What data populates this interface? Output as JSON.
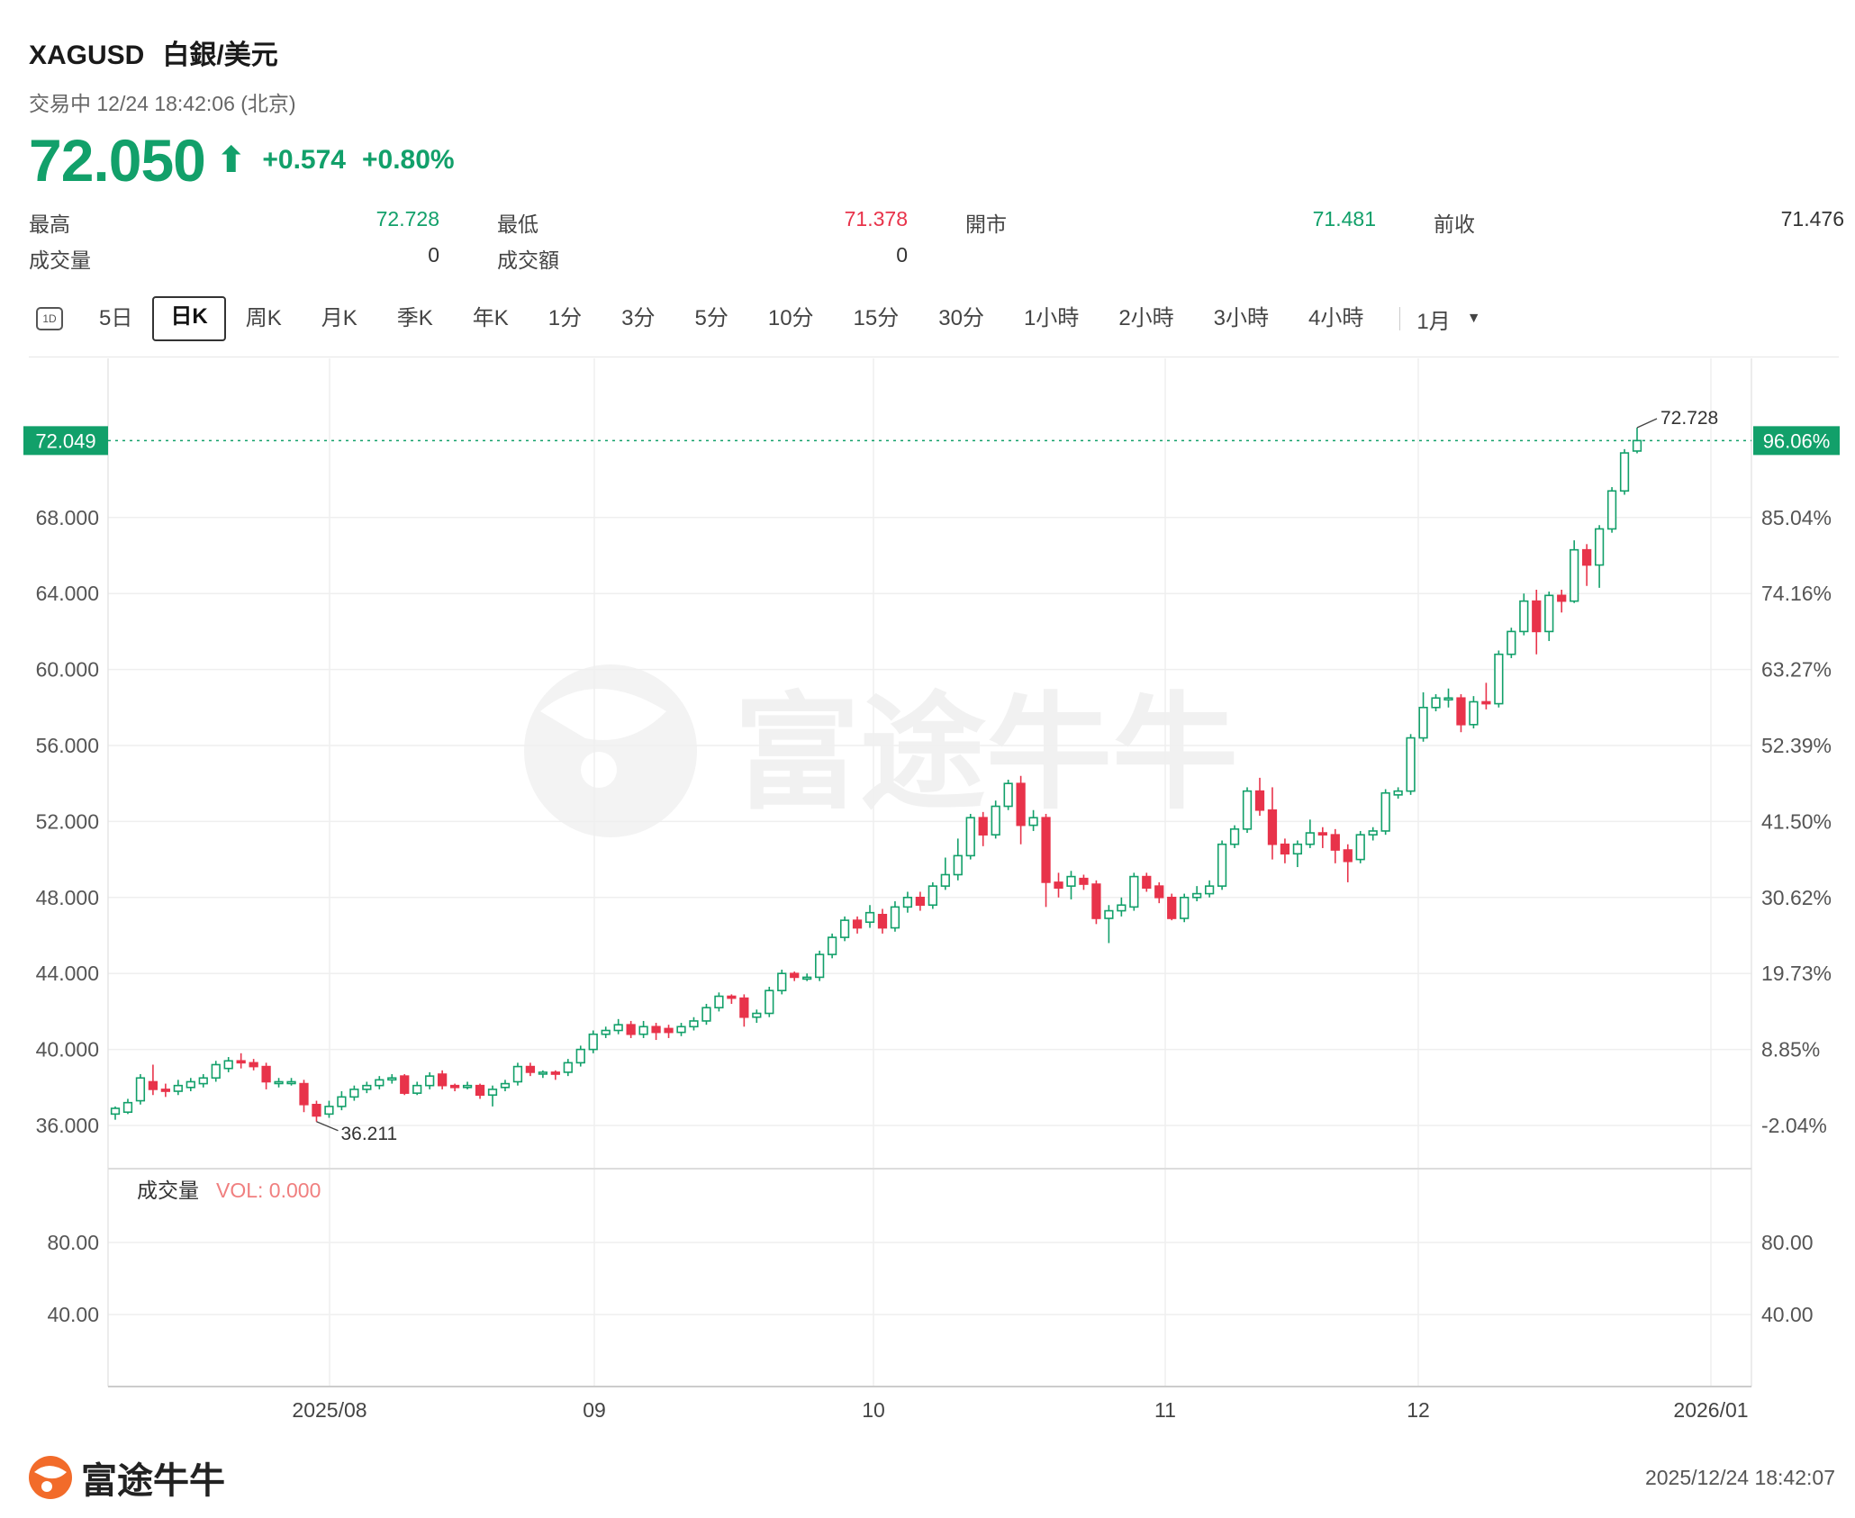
{
  "header": {
    "symbol": "XAGUSD",
    "name": "白銀/美元",
    "status": "交易中 12/24 18:42:06 (北京)"
  },
  "quote": {
    "price": "72.050",
    "arrow": "⬆",
    "change": "+0.574",
    "change_pct": "+0.80%"
  },
  "stats": [
    {
      "label": "最高",
      "value": "72.728",
      "tone": "green"
    },
    {
      "label": "最低",
      "value": "71.378",
      "tone": "red"
    },
    {
      "label": "開市",
      "value": "71.481",
      "tone": "green"
    },
    {
      "label": "前收",
      "value": "71.476",
      "tone": "grey"
    },
    {
      "label": "成交量",
      "value": "0",
      "tone": "grey"
    },
    {
      "label": "成交額",
      "value": "0",
      "tone": "grey"
    }
  ],
  "tabs": {
    "icon_label": "1D",
    "items": [
      "5日",
      "日K",
      "周K",
      "月K",
      "季K",
      "年K",
      "1分",
      "3分",
      "5分",
      "10分",
      "15分",
      "30分",
      "1小時",
      "2小時",
      "3小時",
      "4小時"
    ],
    "active": "日K",
    "dropdown": "1月"
  },
  "volume_panel": {
    "title": "成交量",
    "vol_label": "VOL: 0.000",
    "ticks": [
      "80.00",
      "40.00"
    ]
  },
  "watermark": "富途牛牛",
  "footer": {
    "brand": "富途牛牛",
    "timestamp": "2025/12/24 18:42:07"
  },
  "colors": {
    "up": "#12a06a",
    "down": "#e8334a",
    "vol_label": "#f07f7f"
  },
  "chart_data": {
    "type": "candlestick",
    "x_labels": [
      "2025/08",
      "09",
      "10",
      "11",
      "12",
      "2026/01"
    ],
    "y_ticks": [
      "68.000",
      "64.000",
      "60.000",
      "56.000",
      "52.000",
      "48.000",
      "44.000",
      "40.000",
      "36.000"
    ],
    "pct_ticks": [
      "85.04%",
      "74.16%",
      "63.27%",
      "52.39%",
      "41.50%",
      "30.62%",
      "19.73%",
      "8.85%",
      "-2.04%"
    ],
    "ylim": [
      34.0,
      76.0
    ],
    "current_price_label": "72.049",
    "current_pct_label": "96.06%",
    "max_label": "72.728",
    "min_label": "36.211",
    "candles": [
      [
        36.6,
        36.9,
        36.3,
        37.0
      ],
      [
        36.7,
        37.2,
        36.6,
        37.4
      ],
      [
        37.3,
        38.5,
        37.1,
        38.7
      ],
      [
        38.3,
        37.9,
        37.6,
        39.2
      ],
      [
        37.9,
        37.8,
        37.5,
        38.2
      ],
      [
        37.8,
        38.1,
        37.6,
        38.4
      ],
      [
        38.0,
        38.3,
        37.8,
        38.5
      ],
      [
        38.2,
        38.5,
        38.0,
        38.7
      ],
      [
        38.5,
        39.2,
        38.3,
        39.4
      ],
      [
        39.0,
        39.4,
        38.8,
        39.6
      ],
      [
        39.4,
        39.3,
        39.0,
        39.8
      ],
      [
        39.3,
        39.1,
        38.9,
        39.5
      ],
      [
        39.1,
        38.3,
        37.9,
        39.3
      ],
      [
        38.3,
        38.3,
        38.0,
        38.5
      ],
      [
        38.3,
        38.3,
        38.1,
        38.5
      ],
      [
        38.2,
        37.1,
        36.7,
        38.4
      ],
      [
        37.1,
        36.5,
        36.2,
        37.3
      ],
      [
        36.6,
        37.0,
        36.4,
        37.3
      ],
      [
        37.0,
        37.5,
        36.8,
        37.8
      ],
      [
        37.5,
        37.9,
        37.3,
        38.1
      ],
      [
        37.9,
        38.1,
        37.7,
        38.3
      ],
      [
        38.1,
        38.4,
        37.9,
        38.6
      ],
      [
        38.4,
        38.5,
        38.2,
        38.7
      ],
      [
        38.6,
        37.7,
        37.6,
        38.7
      ],
      [
        37.7,
        38.1,
        37.6,
        38.3
      ],
      [
        38.1,
        38.6,
        37.9,
        38.8
      ],
      [
        38.7,
        38.1,
        37.9,
        38.9
      ],
      [
        38.1,
        38.0,
        37.8,
        38.2
      ],
      [
        38.0,
        38.1,
        37.9,
        38.3
      ],
      [
        38.1,
        37.6,
        37.4,
        38.2
      ],
      [
        37.6,
        37.9,
        37.0,
        38.1
      ],
      [
        38.0,
        38.2,
        37.8,
        38.4
      ],
      [
        38.3,
        39.1,
        38.1,
        39.3
      ],
      [
        39.1,
        38.8,
        38.6,
        39.3
      ],
      [
        38.8,
        38.8,
        38.5,
        38.9
      ],
      [
        38.8,
        38.7,
        38.4,
        38.9
      ],
      [
        38.8,
        39.3,
        38.6,
        39.5
      ],
      [
        39.3,
        40.0,
        39.1,
        40.2
      ],
      [
        40.0,
        40.8,
        39.8,
        41.0
      ],
      [
        40.8,
        41.0,
        40.6,
        41.2
      ],
      [
        41.0,
        41.3,
        40.8,
        41.6
      ],
      [
        41.3,
        40.8,
        40.6,
        41.5
      ],
      [
        40.8,
        41.2,
        40.6,
        41.5
      ],
      [
        41.2,
        40.9,
        40.5,
        41.4
      ],
      [
        41.1,
        40.9,
        40.6,
        41.3
      ],
      [
        40.9,
        41.2,
        40.7,
        41.4
      ],
      [
        41.2,
        41.5,
        41.0,
        41.7
      ],
      [
        41.5,
        42.2,
        41.3,
        42.4
      ],
      [
        42.2,
        42.8,
        42.0,
        43.0
      ],
      [
        42.8,
        42.7,
        42.4,
        42.9
      ],
      [
        42.7,
        41.7,
        41.2,
        42.9
      ],
      [
        41.7,
        41.9,
        41.4,
        42.1
      ],
      [
        41.9,
        43.1,
        41.7,
        43.3
      ],
      [
        43.1,
        44.0,
        42.9,
        44.2
      ],
      [
        44.0,
        43.8,
        43.6,
        44.1
      ],
      [
        43.8,
        43.8,
        43.6,
        44.0
      ],
      [
        43.8,
        45.0,
        43.6,
        45.2
      ],
      [
        45.0,
        45.9,
        44.8,
        46.1
      ],
      [
        45.9,
        46.8,
        45.7,
        47.0
      ],
      [
        46.8,
        46.4,
        46.1,
        47.0
      ],
      [
        46.7,
        47.2,
        46.4,
        47.6
      ],
      [
        47.1,
        46.4,
        46.1,
        47.4
      ],
      [
        46.4,
        47.5,
        46.2,
        47.8
      ],
      [
        47.5,
        48.0,
        47.2,
        48.3
      ],
      [
        48.0,
        47.6,
        47.3,
        48.3
      ],
      [
        47.6,
        48.6,
        47.4,
        48.8
      ],
      [
        48.6,
        49.2,
        48.4,
        50.1
      ],
      [
        49.2,
        50.2,
        48.9,
        51.1
      ],
      [
        50.2,
        52.2,
        50.0,
        52.4
      ],
      [
        52.2,
        51.3,
        50.7,
        52.5
      ],
      [
        51.3,
        52.8,
        51.1,
        53.1
      ],
      [
        52.8,
        54.0,
        52.6,
        54.2
      ],
      [
        54.0,
        51.8,
        50.8,
        54.4
      ],
      [
        51.8,
        52.2,
        51.5,
        52.6
      ],
      [
        52.2,
        48.8,
        47.5,
        52.4
      ],
      [
        48.8,
        48.5,
        48.0,
        49.3
      ],
      [
        48.6,
        49.1,
        47.9,
        49.4
      ],
      [
        49.0,
        48.7,
        48.4,
        49.2
      ],
      [
        48.7,
        46.9,
        46.6,
        48.9
      ],
      [
        46.9,
        47.3,
        45.6,
        47.6
      ],
      [
        47.3,
        47.6,
        47.0,
        48.0
      ],
      [
        47.5,
        49.1,
        47.3,
        49.3
      ],
      [
        49.1,
        48.5,
        48.3,
        49.3
      ],
      [
        48.6,
        48.0,
        47.7,
        48.8
      ],
      [
        48.0,
        46.9,
        46.8,
        48.2
      ],
      [
        46.9,
        48.0,
        46.7,
        48.2
      ],
      [
        48.0,
        48.2,
        47.8,
        48.6
      ],
      [
        48.2,
        48.6,
        48.0,
        48.9
      ],
      [
        48.6,
        50.8,
        48.4,
        51.0
      ],
      [
        50.8,
        51.6,
        50.6,
        51.8
      ],
      [
        51.6,
        53.6,
        51.4,
        53.8
      ],
      [
        53.6,
        52.6,
        52.3,
        54.3
      ],
      [
        52.6,
        50.8,
        50.0,
        53.8
      ],
      [
        50.8,
        50.3,
        49.8,
        51.1
      ],
      [
        50.3,
        50.8,
        49.6,
        51.0
      ],
      [
        50.8,
        51.4,
        50.6,
        52.1
      ],
      [
        51.4,
        51.3,
        50.6,
        51.7
      ],
      [
        51.3,
        50.5,
        49.8,
        51.6
      ],
      [
        50.5,
        49.9,
        48.8,
        50.8
      ],
      [
        50.0,
        51.3,
        49.8,
        51.5
      ],
      [
        51.3,
        51.5,
        51.0,
        51.7
      ],
      [
        51.5,
        53.5,
        51.3,
        53.7
      ],
      [
        53.4,
        53.6,
        53.2,
        53.8
      ],
      [
        53.6,
        56.4,
        53.4,
        56.6
      ],
      [
        56.4,
        58.0,
        56.2,
        58.8
      ],
      [
        58.0,
        58.5,
        57.8,
        58.7
      ],
      [
        58.5,
        58.5,
        58.0,
        59.0
      ],
      [
        58.5,
        57.1,
        56.7,
        58.7
      ],
      [
        57.1,
        58.3,
        56.9,
        58.6
      ],
      [
        58.3,
        58.2,
        57.9,
        59.3
      ],
      [
        58.2,
        60.8,
        58.0,
        61.0
      ],
      [
        60.8,
        62.0,
        60.6,
        62.2
      ],
      [
        62.0,
        63.6,
        61.8,
        64.0
      ],
      [
        63.6,
        62.0,
        60.8,
        64.2
      ],
      [
        62.0,
        63.9,
        61.5,
        64.1
      ],
      [
        63.9,
        63.6,
        63.0,
        64.2
      ],
      [
        63.6,
        66.3,
        63.5,
        66.8
      ],
      [
        66.3,
        65.5,
        64.4,
        66.6
      ],
      [
        65.5,
        67.4,
        64.3,
        67.6
      ],
      [
        67.4,
        69.4,
        67.2,
        69.6
      ],
      [
        69.4,
        71.4,
        69.2,
        71.6
      ],
      [
        71.5,
        72.05,
        71.38,
        72.728
      ]
    ]
  }
}
